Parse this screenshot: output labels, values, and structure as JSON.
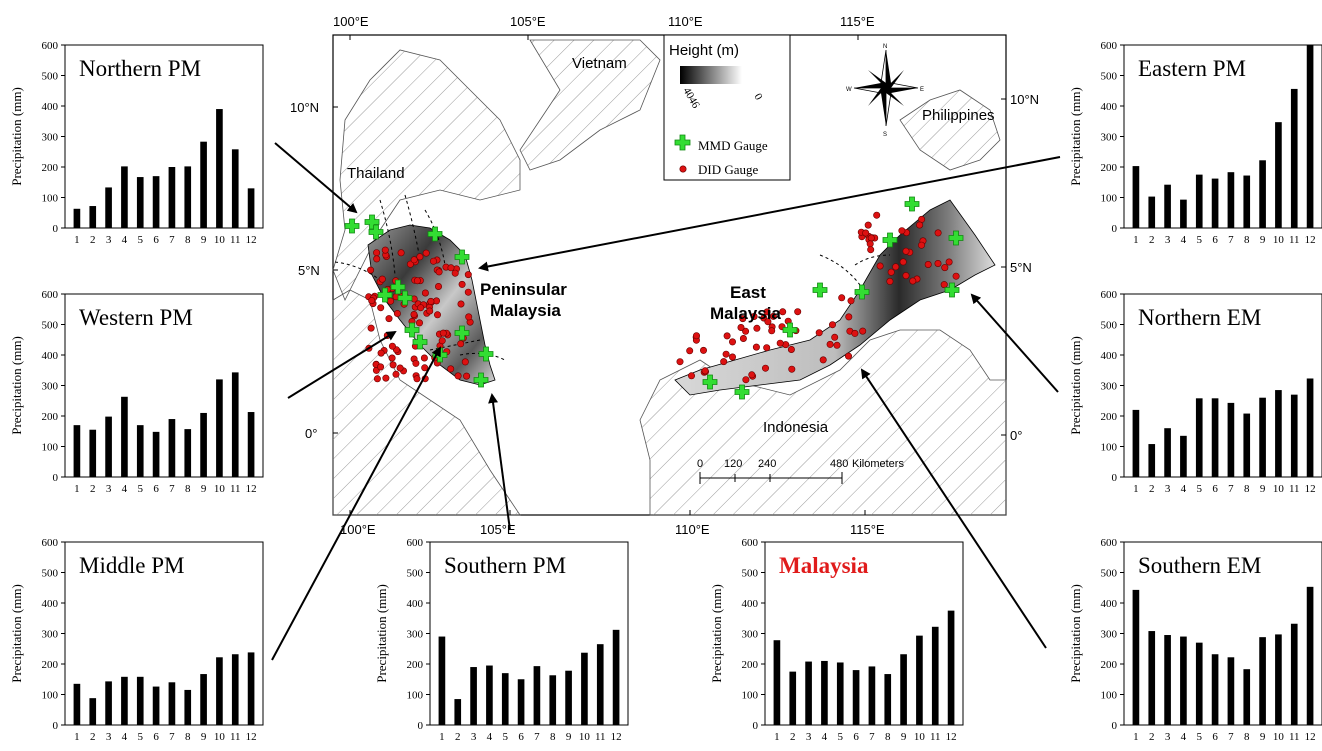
{
  "map": {
    "lon_ticks": [
      "100°E",
      "105°E",
      "110°E",
      "115°E"
    ],
    "lat_ticks_left": [
      "10°N",
      "5°N",
      "0°"
    ],
    "lat_ticks_right": [
      "10°N",
      "5°N",
      "0°"
    ],
    "labels": {
      "vietnam": "Vietnam",
      "thailand": "Thailand",
      "philippines": "Philippines",
      "indonesia": "Indonesia",
      "peninsular_1": "Peninsular",
      "peninsular_2": "Malaysia",
      "east_1": "East",
      "east_2": "Malaysia"
    },
    "legend": {
      "title": "Height (m)",
      "max": "4046",
      "min": "0",
      "mmd": "MMD Gauge",
      "did": "DID Gauge"
    },
    "compass": {
      "n": "N",
      "s": "S",
      "e": "E",
      "w": "W"
    },
    "scalebar": {
      "ticks": [
        "0",
        "120",
        "240",
        "480"
      ],
      "unit": "Kilometers"
    },
    "colors": {
      "mmd": "#33dd33",
      "did": "#dd1111",
      "land": "#e4e4e4",
      "hatch": "#999999"
    }
  },
  "chart_data": [
    {
      "type": "bar",
      "title": "Northern PM",
      "ylabel": "Precipitation (mm)",
      "categories": [
        "1",
        "2",
        "3",
        "4",
        "5",
        "6",
        "7",
        "8",
        "9",
        "10",
        "11",
        "12"
      ],
      "values": [
        63,
        72,
        133,
        202,
        167,
        170,
        200,
        202,
        283,
        390,
        258,
        130
      ],
      "ylim": [
        0,
        600
      ],
      "yticks": [
        "0",
        "100",
        "200",
        "300",
        "400",
        "500",
        "600"
      ]
    },
    {
      "type": "bar",
      "title": "Western PM",
      "ylabel": "Precipitation (mm)",
      "categories": [
        "1",
        "2",
        "3",
        "4",
        "5",
        "6",
        "7",
        "8",
        "9",
        "10",
        "11",
        "12"
      ],
      "values": [
        170,
        155,
        198,
        263,
        170,
        148,
        190,
        157,
        210,
        320,
        343,
        213
      ],
      "ylim": [
        0,
        600
      ],
      "yticks": [
        "0",
        "100",
        "200",
        "300",
        "400",
        "500",
        "600"
      ]
    },
    {
      "type": "bar",
      "title": "Middle PM",
      "ylabel": "Precipitation (mm)",
      "categories": [
        "1",
        "2",
        "3",
        "4",
        "5",
        "6",
        "7",
        "8",
        "9",
        "10",
        "11",
        "12"
      ],
      "values": [
        135,
        88,
        143,
        158,
        158,
        126,
        140,
        115,
        167,
        222,
        232,
        238
      ],
      "ylim": [
        0,
        600
      ],
      "yticks": [
        "0",
        "100",
        "200",
        "300",
        "400",
        "500",
        "600"
      ]
    },
    {
      "type": "bar",
      "title": "Southern PM",
      "ylabel": "Precipitation (mm)",
      "categories": [
        "1",
        "2",
        "3",
        "4",
        "5",
        "6",
        "7",
        "8",
        "9",
        "10",
        "11",
        "12"
      ],
      "values": [
        290,
        85,
        190,
        195,
        170,
        150,
        193,
        163,
        178,
        237,
        265,
        312
      ],
      "ylim": [
        0,
        600
      ],
      "yticks": [
        "0",
        "100",
        "200",
        "300",
        "400",
        "500",
        "600"
      ]
    },
    {
      "type": "bar",
      "title": "Malaysia",
      "ylabel": "Precipitation (mm)",
      "categories": [
        "1",
        "2",
        "3",
        "4",
        "5",
        "6",
        "7",
        "8",
        "9",
        "10",
        "11",
        "12"
      ],
      "values": [
        278,
        175,
        208,
        210,
        205,
        180,
        192,
        167,
        232,
        293,
        322,
        375
      ],
      "ylim": [
        0,
        600
      ],
      "yticks": [
        "0",
        "100",
        "200",
        "300",
        "400",
        "500",
        "600"
      ]
    },
    {
      "type": "bar",
      "title": "Eastern PM",
      "ylabel": "Precipitation (mm)",
      "categories": [
        "1",
        "2",
        "3",
        "4",
        "5",
        "6",
        "7",
        "8",
        "9",
        "10",
        "11",
        "12"
      ],
      "values": [
        203,
        103,
        142,
        93,
        175,
        162,
        183,
        172,
        222,
        347,
        456,
        600
      ],
      "ylim": [
        0,
        600
      ],
      "yticks": [
        "0",
        "100",
        "200",
        "300",
        "400",
        "500",
        "600"
      ]
    },
    {
      "type": "bar",
      "title": "Northern EM",
      "ylabel": "Precipitation (mm)",
      "categories": [
        "1",
        "2",
        "3",
        "4",
        "5",
        "6",
        "7",
        "8",
        "9",
        "10",
        "11",
        "12"
      ],
      "values": [
        220,
        108,
        160,
        135,
        258,
        258,
        243,
        208,
        260,
        285,
        270,
        323
      ],
      "ylim": [
        0,
        600
      ],
      "yticks": [
        "0",
        "100",
        "200",
        "300",
        "400",
        "500",
        "600"
      ]
    },
    {
      "type": "bar",
      "title": "Southern EM",
      "ylabel": "Precipitation (mm)",
      "categories": [
        "1",
        "2",
        "3",
        "4",
        "5",
        "6",
        "7",
        "8",
        "9",
        "10",
        "11",
        "12"
      ],
      "values": [
        443,
        308,
        295,
        290,
        270,
        232,
        222,
        183,
        288,
        297,
        332,
        453
      ],
      "ylim": [
        0,
        600
      ],
      "yticks": [
        "0",
        "100",
        "200",
        "300",
        "400",
        "500",
        "600"
      ]
    }
  ]
}
